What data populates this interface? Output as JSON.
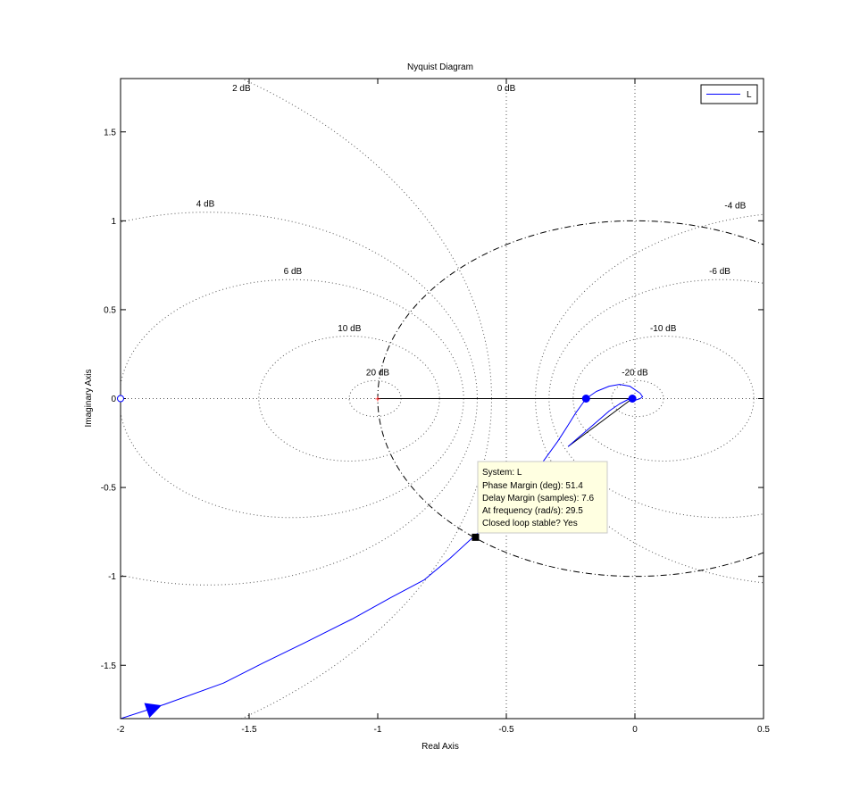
{
  "chart_data": {
    "type": "line",
    "title": "Nyquist Diagram",
    "xlabel": "Real Axis",
    "ylabel": "Imaginary Axis",
    "xlim": [
      -2,
      0.5
    ],
    "ylim": [
      -1.8,
      1.8
    ],
    "xticks": [
      -2,
      -1.5,
      -1,
      -0.5,
      0,
      0.5
    ],
    "xtick_labels": [
      "-2",
      "-1.5",
      "-1",
      "-0.5",
      "0",
      "0.5"
    ],
    "yticks": [
      -1.5,
      -1,
      -0.5,
      0,
      0.5,
      1,
      1.5
    ],
    "ytick_labels": [
      "-1.5",
      "-1",
      "-0.5",
      "0",
      "0.5",
      "1",
      "1.5"
    ],
    "grid": "M-circles (dotted)",
    "legend": {
      "position": "top-right",
      "entries": [
        "L"
      ]
    },
    "colors": {
      "series": "#0000ff",
      "grid": "#555555",
      "axes": "#000000",
      "unit_circle": "#000000",
      "tooltip_bg": "#ffffe1"
    },
    "m_circles": [
      {
        "db": 20,
        "label": "20 dB",
        "label_at": [
          -1.0,
          0.13
        ]
      },
      {
        "db": 10,
        "label": "10 dB",
        "label_at": [
          -1.11,
          0.38
        ]
      },
      {
        "db": 6,
        "label": "6 dB",
        "label_at": [
          -1.33,
          0.7
        ]
      },
      {
        "db": 4,
        "label": "4 dB",
        "label_at": [
          -1.67,
          1.08
        ]
      },
      {
        "db": 2,
        "label": "2 dB",
        "label_at": [
          -1.53,
          1.73
        ]
      },
      {
        "db": 0,
        "label": "0 dB",
        "label_at": [
          -0.5,
          1.73
        ]
      },
      {
        "db": -4,
        "label": "-4 dB",
        "label_at": [
          0.39,
          1.07
        ]
      },
      {
        "db": -6,
        "label": "-6 dB",
        "label_at": [
          0.33,
          0.7
        ]
      },
      {
        "db": -10,
        "label": "-10 dB",
        "label_at": [
          0.11,
          0.38
        ]
      },
      {
        "db": -20,
        "label": "-20 dB",
        "label_at": [
          0.0,
          0.13
        ]
      }
    ],
    "series": [
      {
        "name": "L",
        "x": [
          -2.0,
          -1.83,
          -1.6,
          -1.45,
          -1.28,
          -1.1,
          -0.95,
          -0.82,
          -0.72,
          -0.63,
          -0.5,
          -0.42,
          -0.35,
          -0.3,
          -0.26,
          -0.23,
          -0.2,
          -0.19,
          -0.15,
          -0.1,
          -0.06,
          -0.02,
          0.02,
          0.03,
          0.02,
          0.0,
          -0.02,
          -0.06,
          -0.1,
          -0.14,
          -0.18,
          -0.22,
          -0.26
        ],
        "y": [
          -1.8,
          -1.72,
          -1.6,
          -1.49,
          -1.37,
          -1.24,
          -1.12,
          -1.02,
          -0.9,
          -0.78,
          -0.62,
          -0.48,
          -0.34,
          -0.24,
          -0.15,
          -0.08,
          -0.02,
          0.0,
          0.04,
          0.07,
          0.08,
          0.07,
          0.03,
          0.01,
          0.0,
          -0.01,
          0.0,
          -0.03,
          -0.07,
          -0.12,
          -0.17,
          -0.22,
          -0.27
        ]
      }
    ],
    "critical_point": [
      -1,
      0
    ],
    "marker_left": [
      -2,
      0
    ],
    "closed_loop_poles": [
      [
        -0.19,
        0
      ],
      [
        -0.01,
        0
      ]
    ],
    "phase_margin_point": [
      -0.62,
      -0.78
    ],
    "unit_circle": {
      "center": [
        0,
        0
      ],
      "radius": 1
    },
    "direction_arrow_at": [
      -1.87,
      -1.74
    ],
    "datatip": {
      "lines": [
        "System: L",
        "Phase Margin (deg): 51.4",
        "Delay Margin (samples): 7.6",
        "At frequency (rad/s): 29.5",
        "Closed loop stable? Yes"
      ]
    }
  }
}
